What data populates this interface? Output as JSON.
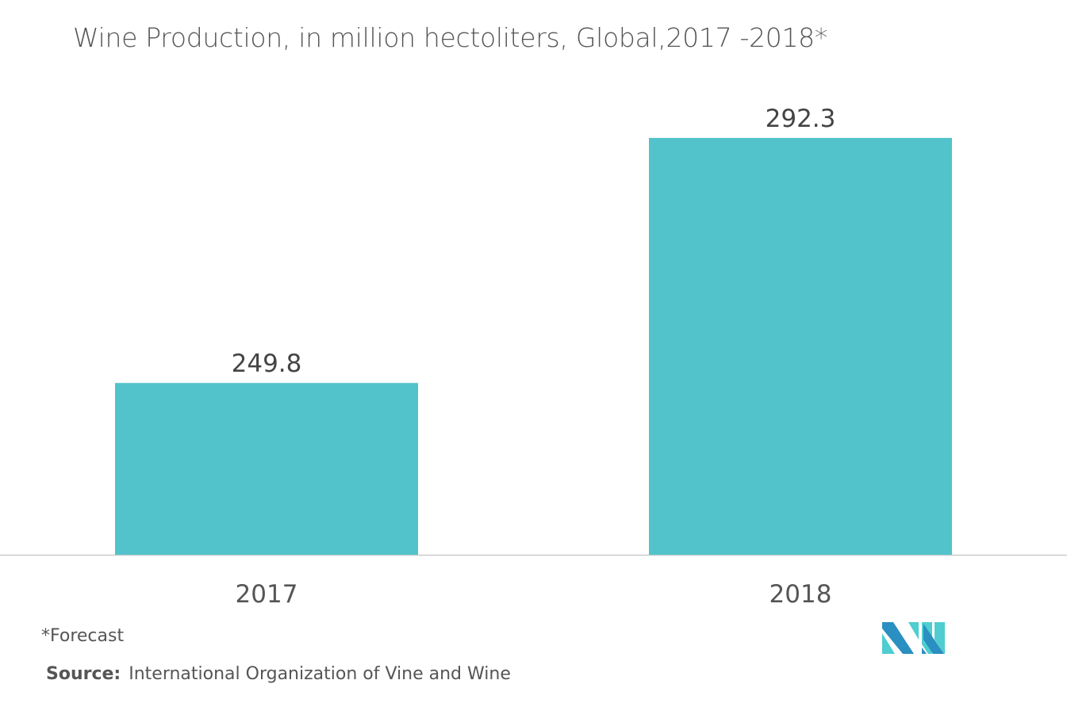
{
  "chart_data": {
    "type": "bar",
    "title": "Wine Production, in million hectoliters, Global,2017 -2018*",
    "categories": [
      "2017",
      "2018"
    ],
    "values": [
      249.8,
      292.3
    ],
    "value_labels": [
      "249.8",
      "292.3"
    ],
    "xlabel": "",
    "ylabel": "",
    "ylim": [
      220,
      300
    ],
    "grid": false,
    "bar_color": "#52c3ca"
  },
  "footnote": "*Forecast",
  "source_label": "Source:",
  "source_text": "International Organization of Vine and Wine",
  "logo": {
    "colors": [
      "#2a8fc1",
      "#4fcdd0"
    ]
  }
}
